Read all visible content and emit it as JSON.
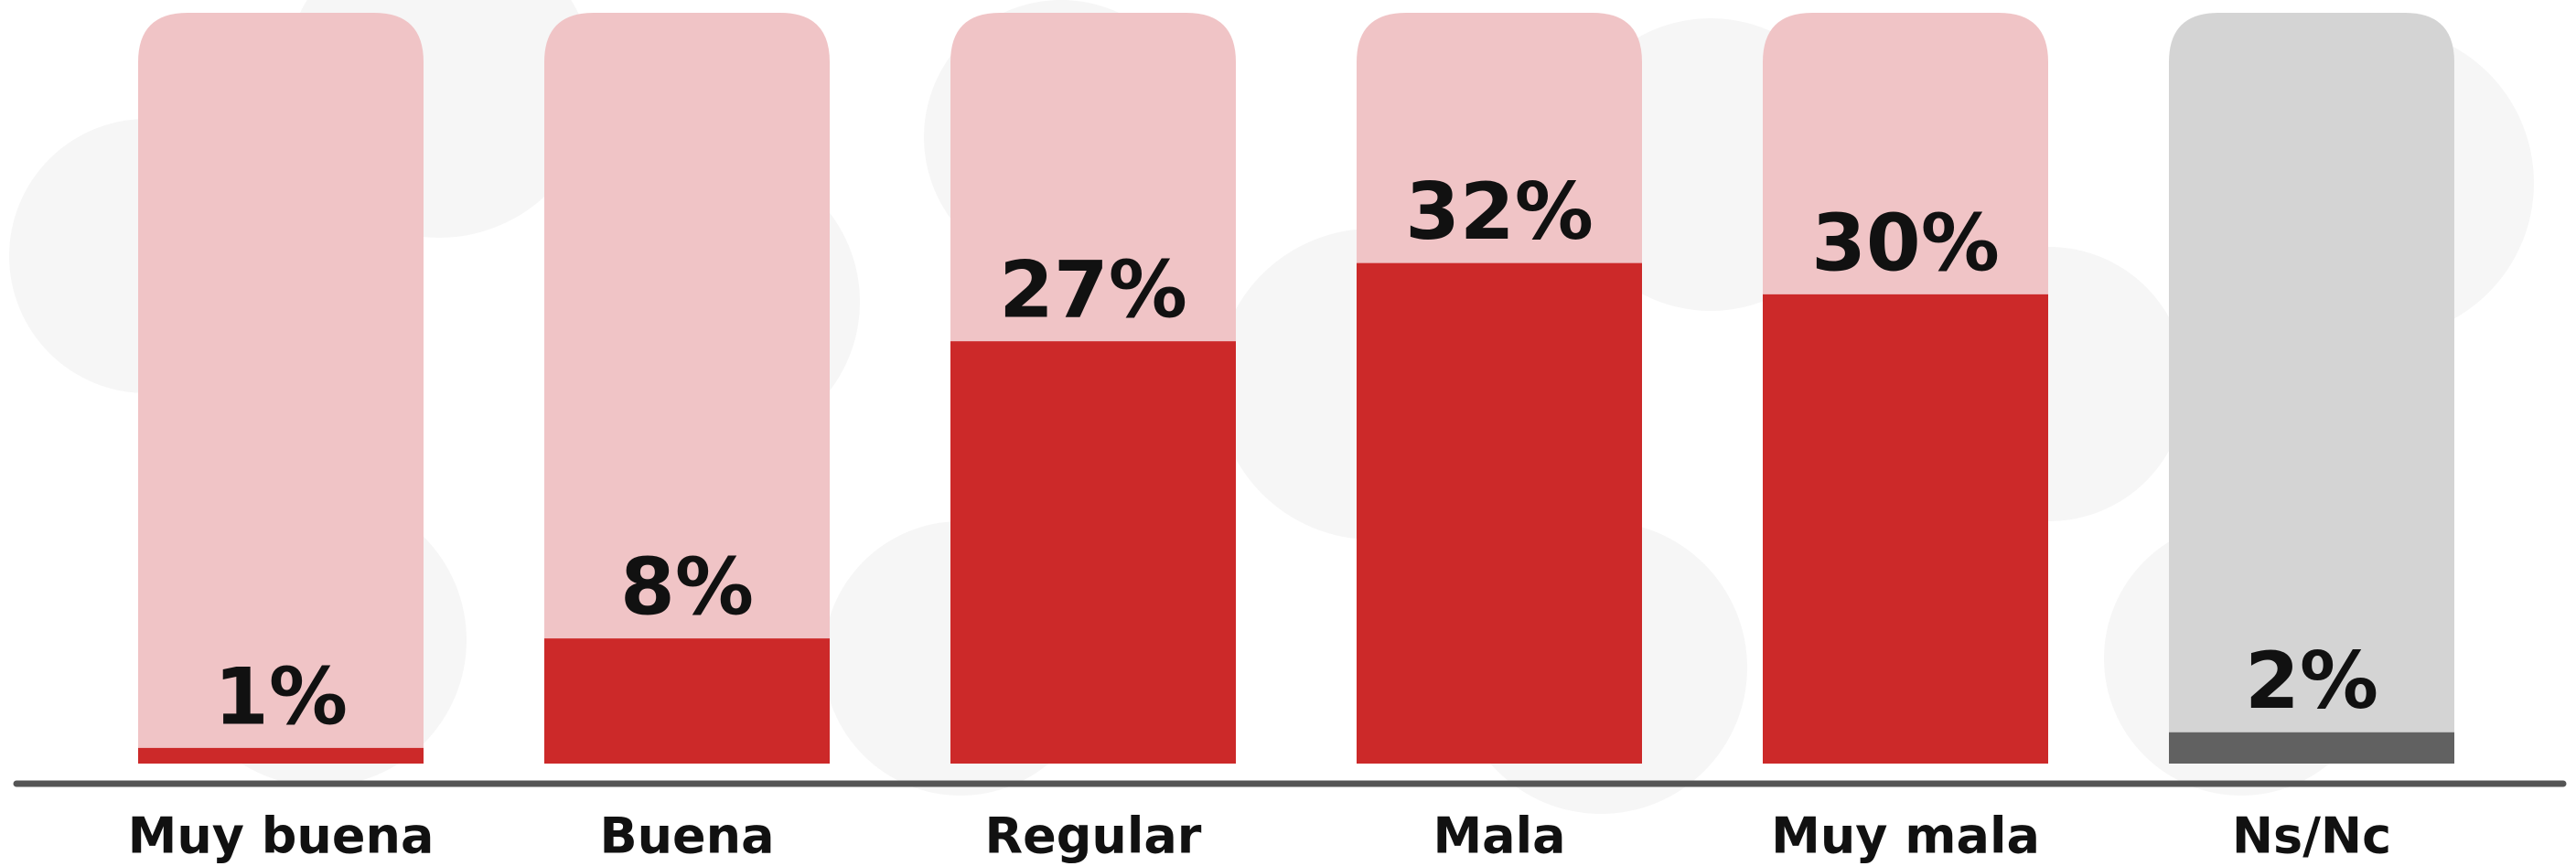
{
  "chart_data": {
    "type": "bar",
    "categories": [
      "Muy buena",
      "Buena",
      "Regular",
      "Mala",
      "Muy mala",
      "Ns/Nc"
    ],
    "values": [
      1,
      8,
      27,
      32,
      30,
      2
    ],
    "value_labels": [
      "1%",
      "8%",
      "27%",
      "32%",
      "30%",
      "2%"
    ],
    "colors": [
      "#cc2929",
      "#cc2929",
      "#cc2929",
      "#cc2929",
      "#cc2929",
      "#616161"
    ],
    "track_colors": [
      "#f0c4c6",
      "#f0c4c6",
      "#f0c4c6",
      "#f0c4c6",
      "#f0c4c6",
      "#d4d4d4"
    ],
    "ylim": [
      0,
      48
    ]
  }
}
